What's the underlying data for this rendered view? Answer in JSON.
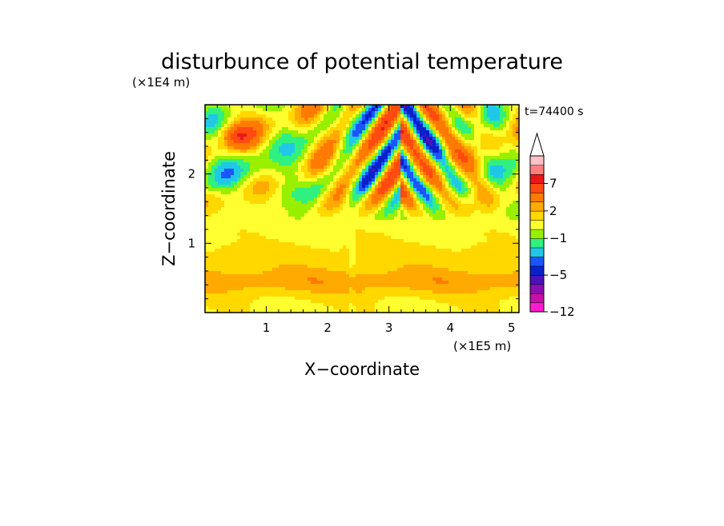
{
  "chart_data": {
    "type": "heatmap",
    "title": "disturbunce of potential temperature",
    "xlabel": "X−coordinate",
    "ylabel": "Z−coordinate",
    "x_scale_label": "(×1E5 m)",
    "y_scale_label": "(×1E4 m)",
    "time_label": "t=74400 s",
    "x_ticks": [
      "1",
      "2",
      "3",
      "4",
      "5"
    ],
    "y_ticks": [
      "1",
      "2"
    ],
    "xlim": [
      0,
      5.12
    ],
    "ylim": [
      0,
      3.0
    ],
    "colorbar": {
      "levels": [
        -12,
        -10,
        -8,
        -6,
        -5,
        -4,
        -3,
        -2,
        -1,
        0,
        1,
        2,
        3,
        5,
        7,
        8,
        9,
        10
      ],
      "tick_labels": [
        "7",
        "2",
        "−1",
        "−5",
        "−12"
      ],
      "colors": [
        "#ff1cd0",
        "#c80fa8",
        "#8a0fb0",
        "#4a12b8",
        "#0a20c8",
        "#1a55ff",
        "#20c8e8",
        "#30f080",
        "#98f000",
        "#ffff30",
        "#ffd800",
        "#ffaa00",
        "#ff7a00",
        "#ff4a10",
        "#e81818",
        "#ff8080",
        "#ffc0c8"
      ],
      "extend": "max"
    }
  }
}
